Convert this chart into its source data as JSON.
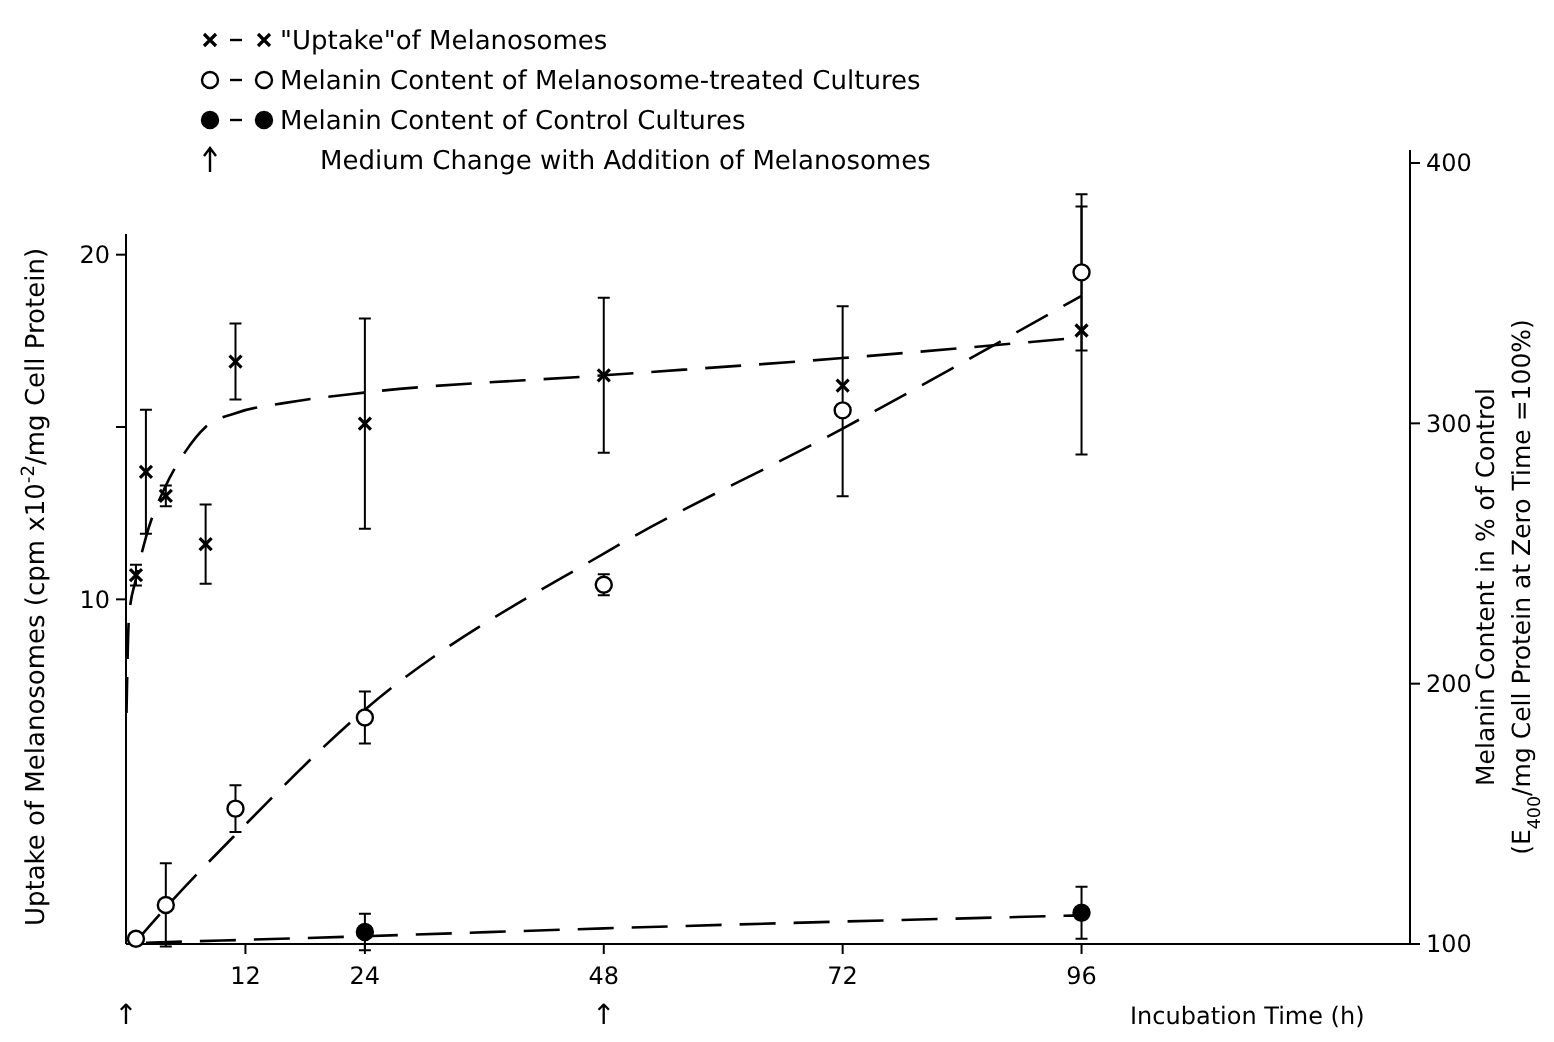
{
  "chart_data": {
    "type": "scatter",
    "xlabel": "Incubation Time (h)",
    "ylabel": "Uptake of Melanosomes (cpm x10$^{-2}$/mg Cell Protein)",
    "y2label": "Melanin Content in % of Control\n(E$_{400}$/mg Cell Protein at Zero Time =100%)",
    "xlim": [
      0,
      129
    ],
    "xticks": [
      12,
      24,
      48,
      72,
      96
    ],
    "ylim": [
      0,
      20.6
    ],
    "yticks": [
      10,
      {
        "value": 15,
        "label": null
      },
      20
    ],
    "y2lim": [
      100,
      405
    ],
    "y2ticks": [
      100,
      200,
      300,
      400
    ],
    "legend": "top",
    "series": [
      {
        "name": "\"Uptake\"of Melanosomes",
        "marker": "cross",
        "color": "#000000",
        "x": [
          1,
          2,
          4,
          8,
          11,
          24,
          48,
          72,
          96
        ],
        "values": [
          10.7,
          13.7,
          13.0,
          11.6,
          16.9,
          15.1,
          16.5,
          16.2,
          17.8
        ],
        "errors": [
          0.3,
          1.8,
          0.3,
          1.15,
          1.1,
          3.05,
          2.25,
          null,
          3.6
        ]
      },
      {
        "name": "Melanin Content of Melanosome-treated Cultures",
        "marker": "circle",
        "color": "#ffffff",
        "axis": "y2",
        "x": [
          1,
          4,
          11,
          24,
          48,
          72,
          96
        ],
        "values": [
          102,
          115,
          152,
          187,
          238,
          305,
          358
        ],
        "errors": [
          null,
          16,
          9,
          10,
          4,
          [
            272,
            345
          ],
          30
        ]
      },
      {
        "name": "Melanin Content of Control Cultures",
        "marker": "circle",
        "color": "#000000",
        "axis": "y2",
        "x": [
          24,
          96
        ],
        "values": [
          104.6,
          112
        ],
        "errors": [
          7,
          10
        ]
      },
      {
        "type": "line",
        "line_style": "dashed",
        "color": "#000000",
        "x": [
          0.05,
          0.3,
          1,
          2,
          4,
          6,
          8,
          11,
          16,
          24,
          48,
          72,
          96
        ],
        "values": [
          6.7,
          9.5,
          10.6,
          11.8,
          13.3,
          14.3,
          15.0,
          15.4,
          15.7,
          16.0,
          16.5,
          17.0,
          17.6
        ]
      },
      {
        "type": "line",
        "line_style": "dashed",
        "color": "#000000",
        "axis": "y2",
        "x": [
          1,
          4,
          11,
          24,
          48,
          72,
          96
        ],
        "values": [
          101,
          114,
          142,
          190,
          250,
          298,
          349
        ]
      },
      {
        "type": "line",
        "line_style": "dashed",
        "color": "#000000",
        "axis": "y2",
        "x": [
          2,
          24,
          48,
          96
        ],
        "values": [
          100.5,
          103,
          106,
          111
        ]
      }
    ],
    "annotations": [
      "↑",
      "↑",
      "Medium Change with Addition of Melanosomes"
    ]
  }
}
